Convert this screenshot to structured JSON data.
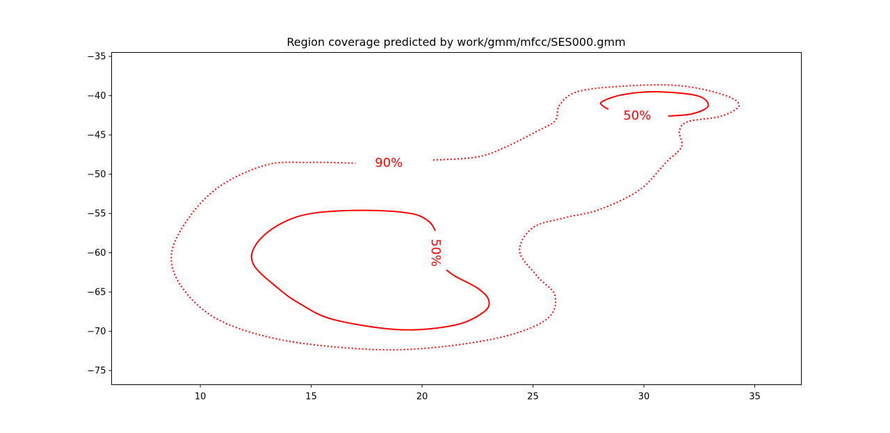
{
  "chart_data": {
    "type": "contour",
    "title": "Region coverage predicted by work/gmm/mfcc/SES000.gmm",
    "xlabel": "",
    "ylabel": "",
    "xlim": [
      6,
      37.1
    ],
    "ylim": [
      -76.8,
      -34.5
    ],
    "x_ticks": [
      10,
      15,
      20,
      25,
      30,
      35
    ],
    "y_ticks": [
      -35,
      -40,
      -45,
      -50,
      -55,
      -60,
      -65,
      -70,
      -75
    ],
    "grid": false,
    "contours": [
      {
        "level": "90%",
        "label": "90%",
        "line_style": "dotted",
        "color": "#ff0000",
        "closed": true,
        "points": [
          [
            20.5,
            -48.2
          ],
          [
            22.5,
            -47.8
          ],
          [
            23.8,
            -46.5
          ],
          [
            25.2,
            -44.5
          ],
          [
            26.0,
            -43.2
          ],
          [
            26.2,
            -41.2
          ],
          [
            27.0,
            -39.5
          ],
          [
            29.0,
            -38.8
          ],
          [
            31.5,
            -38.7
          ],
          [
            33.5,
            -39.8
          ],
          [
            34.3,
            -41.2
          ],
          [
            33.5,
            -42.6
          ],
          [
            32.0,
            -43.3
          ],
          [
            31.6,
            -44.5
          ],
          [
            31.7,
            -46.5
          ],
          [
            31.0,
            -48.5
          ],
          [
            29.8,
            -52.0
          ],
          [
            28.0,
            -54.5
          ],
          [
            26.5,
            -55.5
          ],
          [
            25.0,
            -56.8
          ],
          [
            24.4,
            -59.8
          ],
          [
            25.2,
            -63.0
          ],
          [
            26.0,
            -65.5
          ],
          [
            25.6,
            -68.5
          ],
          [
            23.5,
            -70.8
          ],
          [
            20.0,
            -72.2
          ],
          [
            17.0,
            -72.2
          ],
          [
            13.5,
            -71.0
          ],
          [
            10.8,
            -68.5
          ],
          [
            9.2,
            -64.5
          ],
          [
            8.7,
            -60.2
          ],
          [
            9.5,
            -55.5
          ],
          [
            10.9,
            -51.5
          ],
          [
            13.0,
            -48.8
          ],
          [
            15.0,
            -48.5
          ],
          [
            17.0,
            -48.6
          ],
          [
            20.5,
            -48.2
          ]
        ],
        "gap_after_index": 36,
        "label_position": [
          18.5,
          -48.6
        ]
      },
      {
        "level": "50%",
        "label": "50%",
        "line_style": "solid",
        "color": "#ff0000",
        "closed": false,
        "points": [
          [
            20.6,
            -57.2
          ],
          [
            20.3,
            -56.0
          ],
          [
            19.5,
            -55.0
          ],
          [
            17.5,
            -54.6
          ],
          [
            15.0,
            -55.0
          ],
          [
            13.5,
            -56.5
          ],
          [
            12.5,
            -59.0
          ],
          [
            12.4,
            -61.5
          ],
          [
            13.5,
            -64.5
          ],
          [
            14.5,
            -66.5
          ],
          [
            16.0,
            -68.5
          ],
          [
            19.0,
            -69.8
          ],
          [
            21.5,
            -69.2
          ],
          [
            22.8,
            -67.5
          ],
          [
            23.0,
            -66.0
          ],
          [
            22.5,
            -64.5
          ],
          [
            21.5,
            -63.0
          ],
          [
            21.1,
            -62.2
          ]
        ],
        "label_position": [
          20.6,
          -60.0
        ],
        "label_rotation": 90
      },
      {
        "level": "50%",
        "label": "50%",
        "line_style": "solid",
        "color": "#ff0000",
        "closed": false,
        "points": [
          [
            31.1,
            -42.6
          ],
          [
            32.2,
            -42.3
          ],
          [
            32.9,
            -41.3
          ],
          [
            32.4,
            -40.0
          ],
          [
            30.5,
            -39.5
          ],
          [
            29.0,
            -39.9
          ],
          [
            28.1,
            -40.8
          ],
          [
            28.2,
            -41.4
          ],
          [
            28.4,
            -41.7
          ]
        ],
        "label_position": [
          29.7,
          -42.6
        ]
      }
    ]
  }
}
